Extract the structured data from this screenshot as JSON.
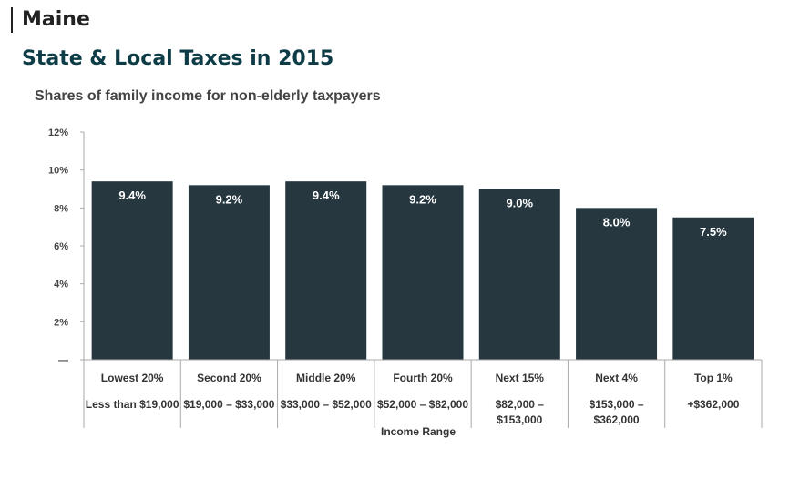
{
  "header": {
    "state": "Maine",
    "title": "State & Local Taxes in 2015"
  },
  "colors": {
    "bar": "#263740",
    "axis": "#aaaaaa",
    "title": "#0d3b46"
  },
  "chart_data": {
    "type": "bar",
    "subtitle": "Shares of family income for non-elderly taxpayers",
    "xlabel": "Income Range",
    "ylabel": "",
    "ylim": [
      0,
      12
    ],
    "yticks": [
      0,
      2,
      4,
      6,
      8,
      10,
      12
    ],
    "ytick_labels": [
      "—",
      "2%",
      "4%",
      "6%",
      "8%",
      "10%",
      "12%"
    ],
    "categories": [
      "Lowest 20%",
      "Second 20%",
      "Middle 20%",
      "Fourth 20%",
      "Next 15%",
      "Next 4%",
      "Top 1%"
    ],
    "ranges": [
      [
        "Less than $19,000"
      ],
      [
        "$19,000 – $33,000"
      ],
      [
        "$33,000 – $52,000"
      ],
      [
        "$52,000 – $82,000"
      ],
      [
        "$82,000 –",
        "$153,000"
      ],
      [
        "$153,000 –",
        "$362,000"
      ],
      [
        "+$362,000"
      ]
    ],
    "values": [
      9.4,
      9.2,
      9.4,
      9.2,
      9.0,
      8.0,
      7.5
    ],
    "value_labels": [
      "9.4%",
      "9.2%",
      "9.4%",
      "9.2%",
      "9.0%",
      "8.0%",
      "7.5%"
    ],
    "grid": false,
    "legend": "none"
  }
}
